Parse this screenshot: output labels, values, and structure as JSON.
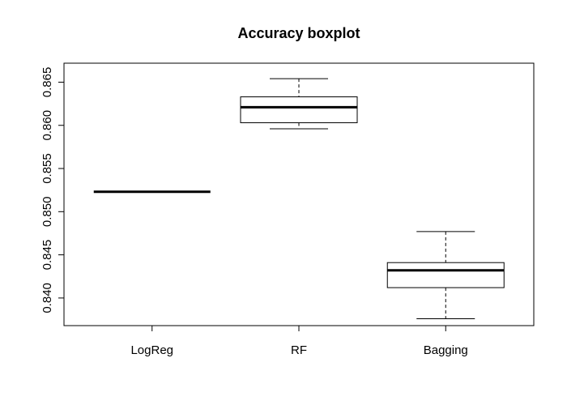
{
  "chart_data": {
    "type": "boxplot",
    "title": "Accuracy boxplot",
    "xlabel": "",
    "ylabel": "",
    "ylim": [
      0.8368,
      0.8672
    ],
    "y_ticks": [
      0.84,
      0.845,
      0.85,
      0.855,
      0.86,
      0.865
    ],
    "y_tick_labels": [
      "0.840",
      "0.845",
      "0.850",
      "0.855",
      "0.860",
      "0.865"
    ],
    "categories": [
      "LogReg",
      "RF",
      "Bagging"
    ],
    "boxes": [
      {
        "name": "LogReg",
        "min": 0.8523,
        "q1": 0.8523,
        "median": 0.8523,
        "q3": 0.8523,
        "max": 0.8523
      },
      {
        "name": "RF",
        "min": 0.8596,
        "q1": 0.8603,
        "median": 0.8621,
        "q3": 0.8633,
        "max": 0.8654
      },
      {
        "name": "Bagging",
        "min": 0.8376,
        "q1": 0.8412,
        "median": 0.8432,
        "q3": 0.8441,
        "max": 0.8477
      }
    ],
    "grid": false,
    "legend": "none"
  }
}
